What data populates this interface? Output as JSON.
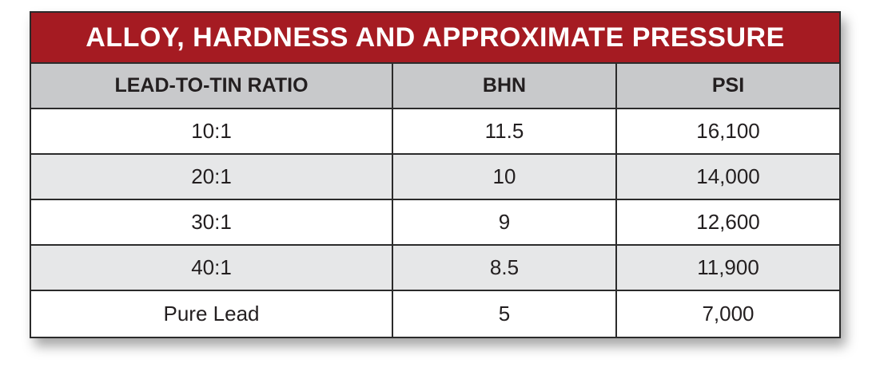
{
  "title": "ALLOY, HARDNESS AND APPROXIMATE PRESSURE",
  "colors": {
    "title_bg": "#a51b22",
    "header_bg": "#c8c9cb",
    "alt_row_bg": "#e6e7e8"
  },
  "headers": [
    "LEAD-TO-TIN RATIO",
    "BHN",
    "PSI"
  ],
  "rows": [
    [
      "10:1",
      "11.5",
      "16,100"
    ],
    [
      "20:1",
      "10",
      "14,000"
    ],
    [
      "30:1",
      "9",
      "12,600"
    ],
    [
      "40:1",
      "8.5",
      "11,900"
    ],
    [
      "Pure Lead",
      "5",
      "7,000"
    ]
  ]
}
